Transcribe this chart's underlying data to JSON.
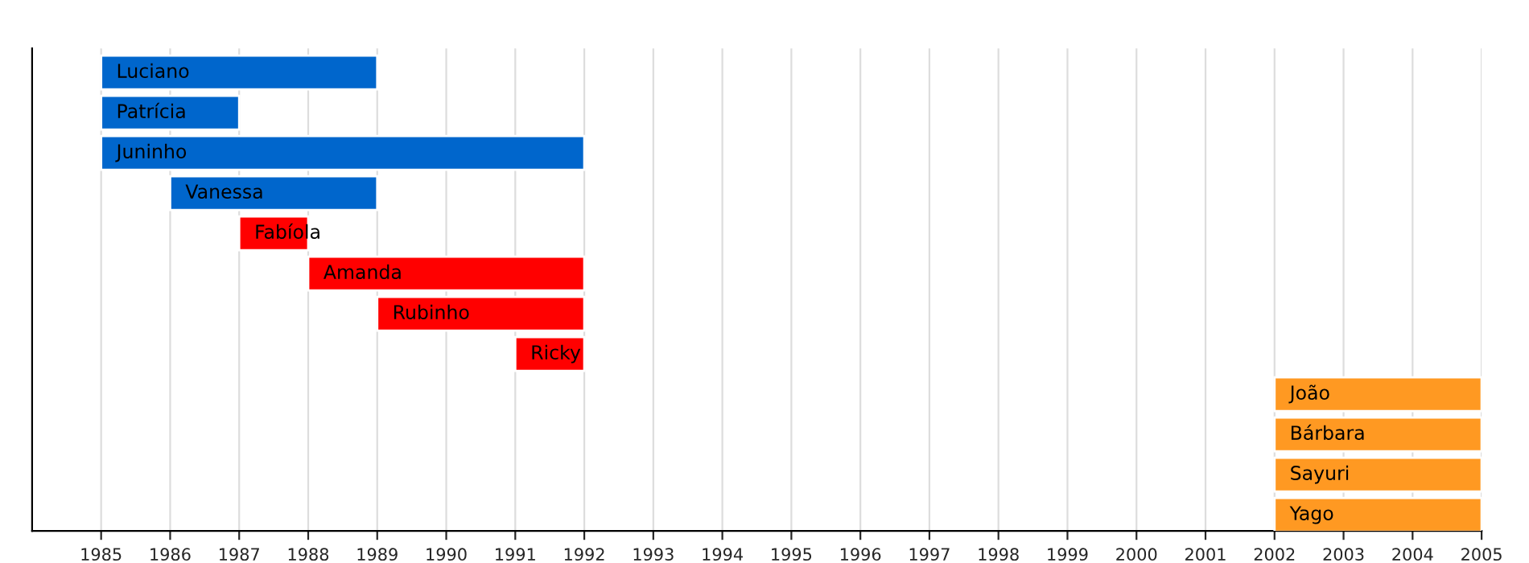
{
  "chart_data": {
    "type": "bar",
    "orientation": "horizontal",
    "categories": [
      "Luciano",
      "Patrícia",
      "Juninho",
      "Vanessa",
      "Fabíola",
      "Amanda",
      "Rubinho",
      "Ricky",
      "João",
      "Bárbara",
      "Sayuri",
      "Yago"
    ],
    "base": [
      1985,
      1985,
      1985,
      1986,
      1987,
      1988,
      1989,
      1991,
      2002,
      2002,
      2002,
      2002
    ],
    "values": [
      4,
      2,
      7,
      3,
      1,
      4,
      3,
      1,
      3,
      3,
      3,
      3
    ],
    "colors": [
      "#0066cc",
      "#0066cc",
      "#0066cc",
      "#0066cc",
      "#ff0000",
      "#ff0000",
      "#ff0000",
      "#ff0000",
      "#ff9922",
      "#ff9922",
      "#ff9922",
      "#ff9922"
    ],
    "xlim": [
      1984,
      2005
    ],
    "xticks": [
      1985,
      1986,
      1987,
      1988,
      1989,
      1990,
      1991,
      1992,
      1993,
      1994,
      1995,
      1996,
      1997,
      1998,
      1999,
      2000,
      2001,
      2002,
      2003,
      2004,
      2005
    ],
    "grid": "x",
    "tick_labels": "x"
  }
}
